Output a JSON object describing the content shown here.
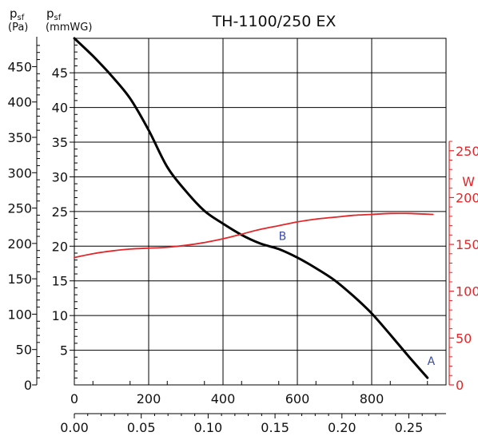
{
  "chart_data": {
    "type": "line",
    "title": "TH-1100/250 EX",
    "y_left_pa": {
      "label_main": "p",
      "label_sub": "sf",
      "unit": "(Pa)",
      "ticks": [
        0,
        50,
        100,
        150,
        200,
        250,
        300,
        350,
        400,
        450
      ],
      "range": [
        0,
        490
      ]
    },
    "y_left_mmwg": {
      "label_main": "p",
      "label_sub": "sf",
      "unit": "(mmWG)",
      "ticks": [
        5,
        10,
        15,
        20,
        25,
        30,
        35,
        40,
        45
      ],
      "range": [
        0,
        49.97
      ]
    },
    "y_right_w": {
      "label": "W",
      "ticks": [
        0,
        50,
        100,
        150,
        200,
        250
      ],
      "range": [
        0,
        370
      ]
    },
    "x_top": {
      "ticks": [
        "0",
        "200",
        "400",
        "600",
        "800"
      ],
      "range": [
        0,
        1000
      ]
    },
    "x_bottom": {
      "ticks": [
        "0.00",
        "0.05",
        "0.10",
        "0.15",
        "0.20",
        "0.25"
      ],
      "range": [
        0,
        0.2778
      ]
    },
    "grid": true,
    "series": [
      {
        "color": "#000000",
        "axis": "y_left_pa",
        "x": [
          0,
          50,
          100,
          150,
          200,
          250,
          300,
          350,
          400,
          450,
          500,
          550,
          600,
          650,
          700,
          750,
          800,
          850,
          900,
          950
        ],
        "y": [
          490,
          465,
          437,
          405,
          360,
          308,
          274,
          246,
          228,
          212,
          200,
          192,
          180,
          165,
          148,
          126,
          101,
          71,
          40,
          10
        ]
      },
      {
        "color": "#e3262a",
        "axis": "y_right_w",
        "x": [
          0,
          50,
          100,
          150,
          200,
          250,
          300,
          350,
          400,
          450,
          500,
          550,
          600,
          650,
          700,
          750,
          800,
          850,
          900,
          965
        ],
        "y": [
          136,
          140,
          143,
          145,
          146,
          147,
          149,
          152,
          156,
          161,
          166,
          170,
          174,
          177,
          179,
          181,
          182,
          183,
          183,
          182
        ]
      }
    ],
    "annotations": [
      {
        "text": "B",
        "x": 560,
        "y": 205
      },
      {
        "text": "A",
        "x": 960,
        "y": 28
      }
    ]
  }
}
